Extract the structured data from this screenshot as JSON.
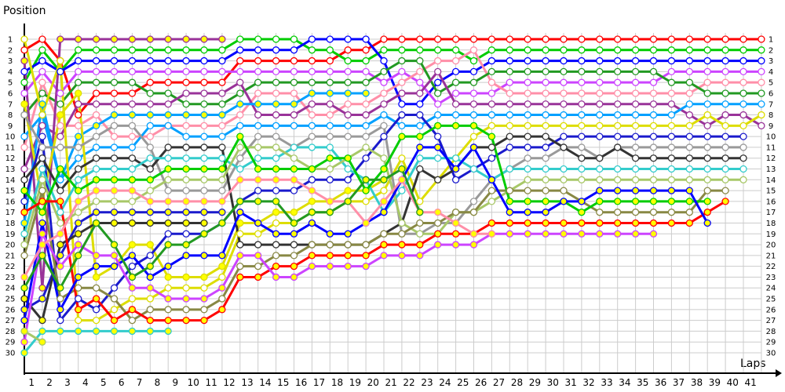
{
  "chart_data": {
    "type": "line",
    "title": "",
    "ylabel": "Position",
    "xlabel": "Laps",
    "x_ticks": [
      1,
      2,
      3,
      4,
      5,
      6,
      7,
      8,
      9,
      10,
      11,
      12,
      13,
      14,
      15,
      16,
      17,
      18,
      19,
      20,
      21,
      22,
      23,
      24,
      25,
      26,
      27,
      28,
      29,
      30,
      31,
      32,
      33,
      34,
      35,
      36,
      37,
      38,
      39,
      40,
      41
    ],
    "y_ticks": [
      1,
      2,
      3,
      4,
      5,
      6,
      7,
      8,
      9,
      10,
      11,
      12,
      13,
      14,
      15,
      16,
      17,
      18,
      19,
      20,
      21,
      22,
      23,
      24,
      25,
      26,
      27,
      28,
      29,
      30
    ],
    "xlim": [
      0,
      41
    ],
    "ylim": [
      1,
      30
    ],
    "y_inverted": true,
    "grid": true,
    "series": [
      {
        "color": "#ff0000",
        "marker": "white",
        "positions": [
          2,
          1,
          3,
          8,
          6,
          6,
          6,
          5,
          5,
          5,
          5,
          5,
          3,
          3,
          3,
          3,
          3,
          3,
          2,
          2,
          1,
          1,
          1,
          1,
          1,
          1,
          1,
          1,
          1,
          1,
          1,
          1,
          1,
          1,
          1,
          1,
          1,
          1,
          1,
          1,
          1,
          1
        ]
      },
      {
        "color": "#00cc00",
        "marker": "white",
        "positions": [
          5,
          2,
          4,
          2,
          2,
          2,
          2,
          2,
          2,
          2,
          2,
          2,
          1,
          1,
          1,
          1,
          2,
          2,
          3,
          3,
          2,
          2,
          2,
          2,
          2,
          3,
          2,
          2,
          2,
          2,
          2,
          2,
          2,
          2,
          2,
          2,
          2,
          2,
          2,
          2,
          2,
          2
        ]
      },
      {
        "color": "#0000ff",
        "marker": "white",
        "positions": [
          4,
          3,
          4,
          3,
          3,
          3,
          3,
          3,
          3,
          3,
          3,
          3,
          2,
          2,
          2,
          2,
          1,
          1,
          1,
          1,
          3,
          7,
          7,
          5,
          4,
          4,
          3,
          3,
          3,
          3,
          3,
          3,
          3,
          3,
          3,
          3,
          3,
          3,
          3,
          3,
          3,
          3
        ]
      },
      {
        "color": "#cc44ff",
        "marker": "white",
        "positions": [
          6,
          4,
          6,
          4,
          4,
          4,
          4,
          4,
          4,
          4,
          4,
          4,
          4,
          4,
          4,
          4,
          4,
          4,
          4,
          4,
          5,
          4,
          5,
          7,
          6,
          6,
          6,
          5,
          5,
          5,
          5,
          5,
          5,
          5,
          5,
          5,
          4,
          4,
          4,
          4,
          4,
          4
        ]
      },
      {
        "color": "#ff8fa8",
        "marker": "white",
        "positions": [
          11,
          5,
          9,
          9,
          8,
          10,
          10,
          10,
          9,
          9,
          9,
          9,
          8,
          6,
          6,
          6,
          8,
          8,
          7,
          7,
          6,
          5,
          4,
          3,
          3,
          2,
          5,
          6,
          6,
          6,
          6,
          6,
          6,
          6,
          6,
          6,
          6,
          6,
          5,
          5,
          5,
          5
        ]
      },
      {
        "color": "#229922",
        "marker": "white",
        "positions": [
          8,
          6,
          7,
          5,
          5,
          5,
          5,
          6,
          6,
          7,
          7,
          7,
          6,
          5,
          5,
          5,
          5,
          5,
          5,
          5,
          4,
          3,
          3,
          6,
          5,
          5,
          4,
          4,
          4,
          4,
          4,
          4,
          4,
          4,
          4,
          4,
          5,
          5,
          6,
          6,
          6,
          6
        ]
      },
      {
        "color": "#993399",
        "marker": "yellow",
        "positions": [
          3,
          24,
          1,
          1,
          1,
          1,
          1,
          1,
          1,
          1,
          1,
          1
        ]
      },
      {
        "color": "#993399",
        "marker": "white",
        "positions": [
          13,
          9,
          10,
          7,
          7,
          7,
          7,
          7,
          7,
          6,
          6,
          6,
          5,
          8,
          8,
          8,
          7,
          7,
          8,
          8,
          7,
          6,
          6,
          4,
          7,
          7,
          7,
          7,
          7,
          7,
          7,
          7,
          7,
          7,
          7,
          7,
          7,
          8,
          9,
          8,
          8,
          9
        ]
      },
      {
        "color": "#00a0ff",
        "marker": "yellow",
        "positions": [
          18,
          7,
          14,
          10,
          9,
          8,
          8,
          8,
          8,
          8,
          8,
          8,
          7,
          7,
          7,
          7,
          6,
          6,
          6,
          6
        ]
      },
      {
        "color": "#00a0ff",
        "marker": "white",
        "positions": [
          10,
          8,
          14,
          12,
          11,
          11,
          11,
          9,
          9,
          10,
          10,
          10,
          9,
          9,
          9,
          9,
          9,
          9,
          9,
          9,
          8,
          9,
          9,
          8,
          8,
          8,
          8,
          8,
          8,
          8,
          8,
          8,
          8,
          8,
          8,
          8,
          8,
          7,
          7,
          7,
          7,
          7
        ]
      },
      {
        "color": "#dddd00",
        "marker": "white",
        "positions": [
          1,
          8,
          3,
          27,
          27,
          26,
          25,
          25,
          24,
          24,
          24,
          23,
          19,
          19,
          18,
          18,
          17,
          17,
          16,
          16,
          15,
          12,
          16,
          14,
          12,
          10,
          9,
          9,
          9,
          9,
          9,
          9,
          9,
          9,
          9,
          9,
          9,
          9,
          8,
          9,
          9,
          8
        ]
      },
      {
        "color": "#dddd00",
        "marker": "yellow",
        "positions": [
          7,
          16,
          8,
          6,
          23,
          22,
          20,
          20,
          23,
          23,
          23,
          22,
          18,
          18,
          17,
          17,
          16,
          16,
          15,
          15,
          14
        ]
      },
      {
        "color": "#1a1acc",
        "marker": "white",
        "positions": [
          16,
          10,
          27,
          25,
          26,
          24,
          22,
          21,
          19,
          19,
          19,
          18,
          16,
          15,
          15,
          15,
          14,
          14,
          14,
          12,
          10,
          8,
          8,
          10,
          14,
          13,
          12,
          11,
          11,
          11,
          10,
          10,
          10,
          10,
          10,
          10,
          10,
          10,
          10,
          10,
          10
        ]
      },
      {
        "color": "#1a1acc",
        "marker": "yellow",
        "positions": [
          26,
          25,
          21,
          18,
          17,
          17,
          17,
          17,
          17,
          17,
          17,
          17
        ]
      },
      {
        "color": "#999999",
        "marker": "white",
        "positions": [
          8,
          11,
          11,
          11,
          10,
          9,
          9,
          11,
          15,
          15,
          15,
          15,
          12,
          10,
          10,
          11,
          10,
          10,
          10,
          10,
          9,
          19,
          19,
          18,
          18,
          16,
          14,
          13,
          12,
          12,
          11,
          11,
          12,
          11,
          11,
          11,
          11,
          11,
          11,
          11,
          11
        ]
      },
      {
        "color": "#333333",
        "marker": "white",
        "positions": [
          14,
          12,
          15,
          13,
          12,
          12,
          12,
          13,
          11,
          11,
          11,
          11,
          20,
          20,
          20,
          20,
          20,
          20,
          20,
          20,
          19,
          18,
          13,
          14,
          13,
          11,
          11,
          10,
          10,
          10,
          11,
          12,
          12,
          11,
          12,
          12,
          12,
          12,
          12,
          12,
          12
        ]
      },
      {
        "color": "#333333",
        "marker": "yellow",
        "positions": [
          25,
          27,
          20,
          19,
          18,
          18,
          18,
          18,
          18,
          18,
          18
        ]
      },
      {
        "color": "#33cccc",
        "marker": "white",
        "positions": [
          19,
          13,
          17,
          14,
          13,
          13,
          13,
          12,
          12,
          12,
          12,
          12,
          13,
          12,
          12,
          11,
          11,
          11,
          13,
          14,
          17,
          15,
          12,
          12,
          12,
          13,
          14,
          13,
          13,
          13,
          13,
          13,
          13,
          13,
          13,
          13,
          13,
          13,
          13,
          13,
          13
        ]
      },
      {
        "color": "#33cccc",
        "marker": "yellow",
        "positions": [
          30,
          28,
          28,
          28,
          28,
          28,
          28,
          28,
          28
        ]
      },
      {
        "color": "#a8c868",
        "marker": "white",
        "positions": [
          20,
          14,
          18,
          17,
          16,
          16,
          16,
          15,
          14,
          14,
          14,
          14,
          11,
          11,
          11,
          12,
          13,
          13,
          12,
          11,
          12,
          18,
          19,
          19,
          17,
          17,
          16,
          15,
          14,
          14,
          14,
          14,
          14,
          14,
          14,
          14,
          14,
          14,
          14,
          14,
          14
        ]
      },
      {
        "color": "#a8c868",
        "marker": "yellow",
        "positions": [
          28,
          29
        ]
      },
      {
        "color": "#888844",
        "marker": "white",
        "positions": [
          21,
          15,
          25,
          24,
          24,
          25,
          27,
          26,
          26,
          26,
          26,
          25,
          22,
          22,
          21,
          21,
          20,
          20,
          20,
          20,
          19,
          19,
          18,
          18,
          17,
          17,
          15,
          15,
          15,
          15,
          15,
          16,
          17,
          17,
          17,
          17,
          17,
          17,
          15,
          15
        ]
      },
      {
        "color": "#00cc00",
        "marker": "yellow",
        "positions": [
          15,
          17,
          13,
          15,
          14,
          14,
          14,
          14,
          13,
          13,
          13,
          13,
          10,
          13,
          13,
          13,
          13,
          12,
          12,
          15,
          13,
          10,
          10,
          9,
          9,
          9,
          10,
          16,
          16,
          16,
          16,
          17,
          16,
          16,
          16,
          16,
          16,
          16,
          16
        ]
      },
      {
        "color": "#ff0000",
        "marker": "yellow",
        "positions": [
          17,
          16,
          16,
          26,
          25,
          27,
          26,
          27,
          27,
          27,
          27,
          26,
          23,
          23,
          22,
          22,
          21,
          21,
          21,
          21,
          20,
          20,
          20,
          19,
          19,
          19,
          18,
          18,
          18,
          18,
          18,
          18,
          18,
          18,
          18,
          18,
          18,
          18,
          17,
          16
        ]
      },
      {
        "color": "#0000ff",
        "marker": "yellow",
        "positions": [
          27,
          18,
          26,
          23,
          22,
          22,
          21,
          23,
          22,
          21,
          21,
          21,
          17,
          18,
          19,
          19,
          18,
          19,
          19,
          18,
          17,
          14,
          11,
          11,
          13,
          11,
          14,
          17,
          17,
          17,
          16,
          16,
          15,
          15,
          15,
          15,
          15,
          15,
          18
        ]
      },
      {
        "color": "#cc44ff",
        "marker": "yellow",
        "positions": [
          29,
          19,
          22,
          20,
          21,
          21,
          24,
          24,
          25,
          25,
          25,
          24,
          21,
          21,
          23,
          23,
          22,
          22,
          22,
          22,
          21,
          21,
          21,
          20,
          20,
          20,
          19,
          19,
          19,
          19,
          19,
          19,
          19,
          19,
          19,
          19
        ]
      },
      {
        "color": "#ff8fa8",
        "marker": "yellow",
        "positions": [
          23,
          20,
          19,
          16,
          15,
          15,
          15,
          16,
          16,
          16,
          16,
          16,
          14,
          14,
          14,
          14,
          15,
          16,
          16,
          18,
          16,
          14,
          17,
          17,
          18,
          19,
          19
        ]
      },
      {
        "color": "#229922",
        "marker": "yellow",
        "positions": [
          24,
          21,
          24,
          21,
          18,
          20,
          23,
          22,
          20,
          20,
          19,
          18,
          16,
          16,
          16,
          18,
          17,
          17,
          16,
          14,
          14,
          13,
          17
        ]
      }
    ]
  }
}
